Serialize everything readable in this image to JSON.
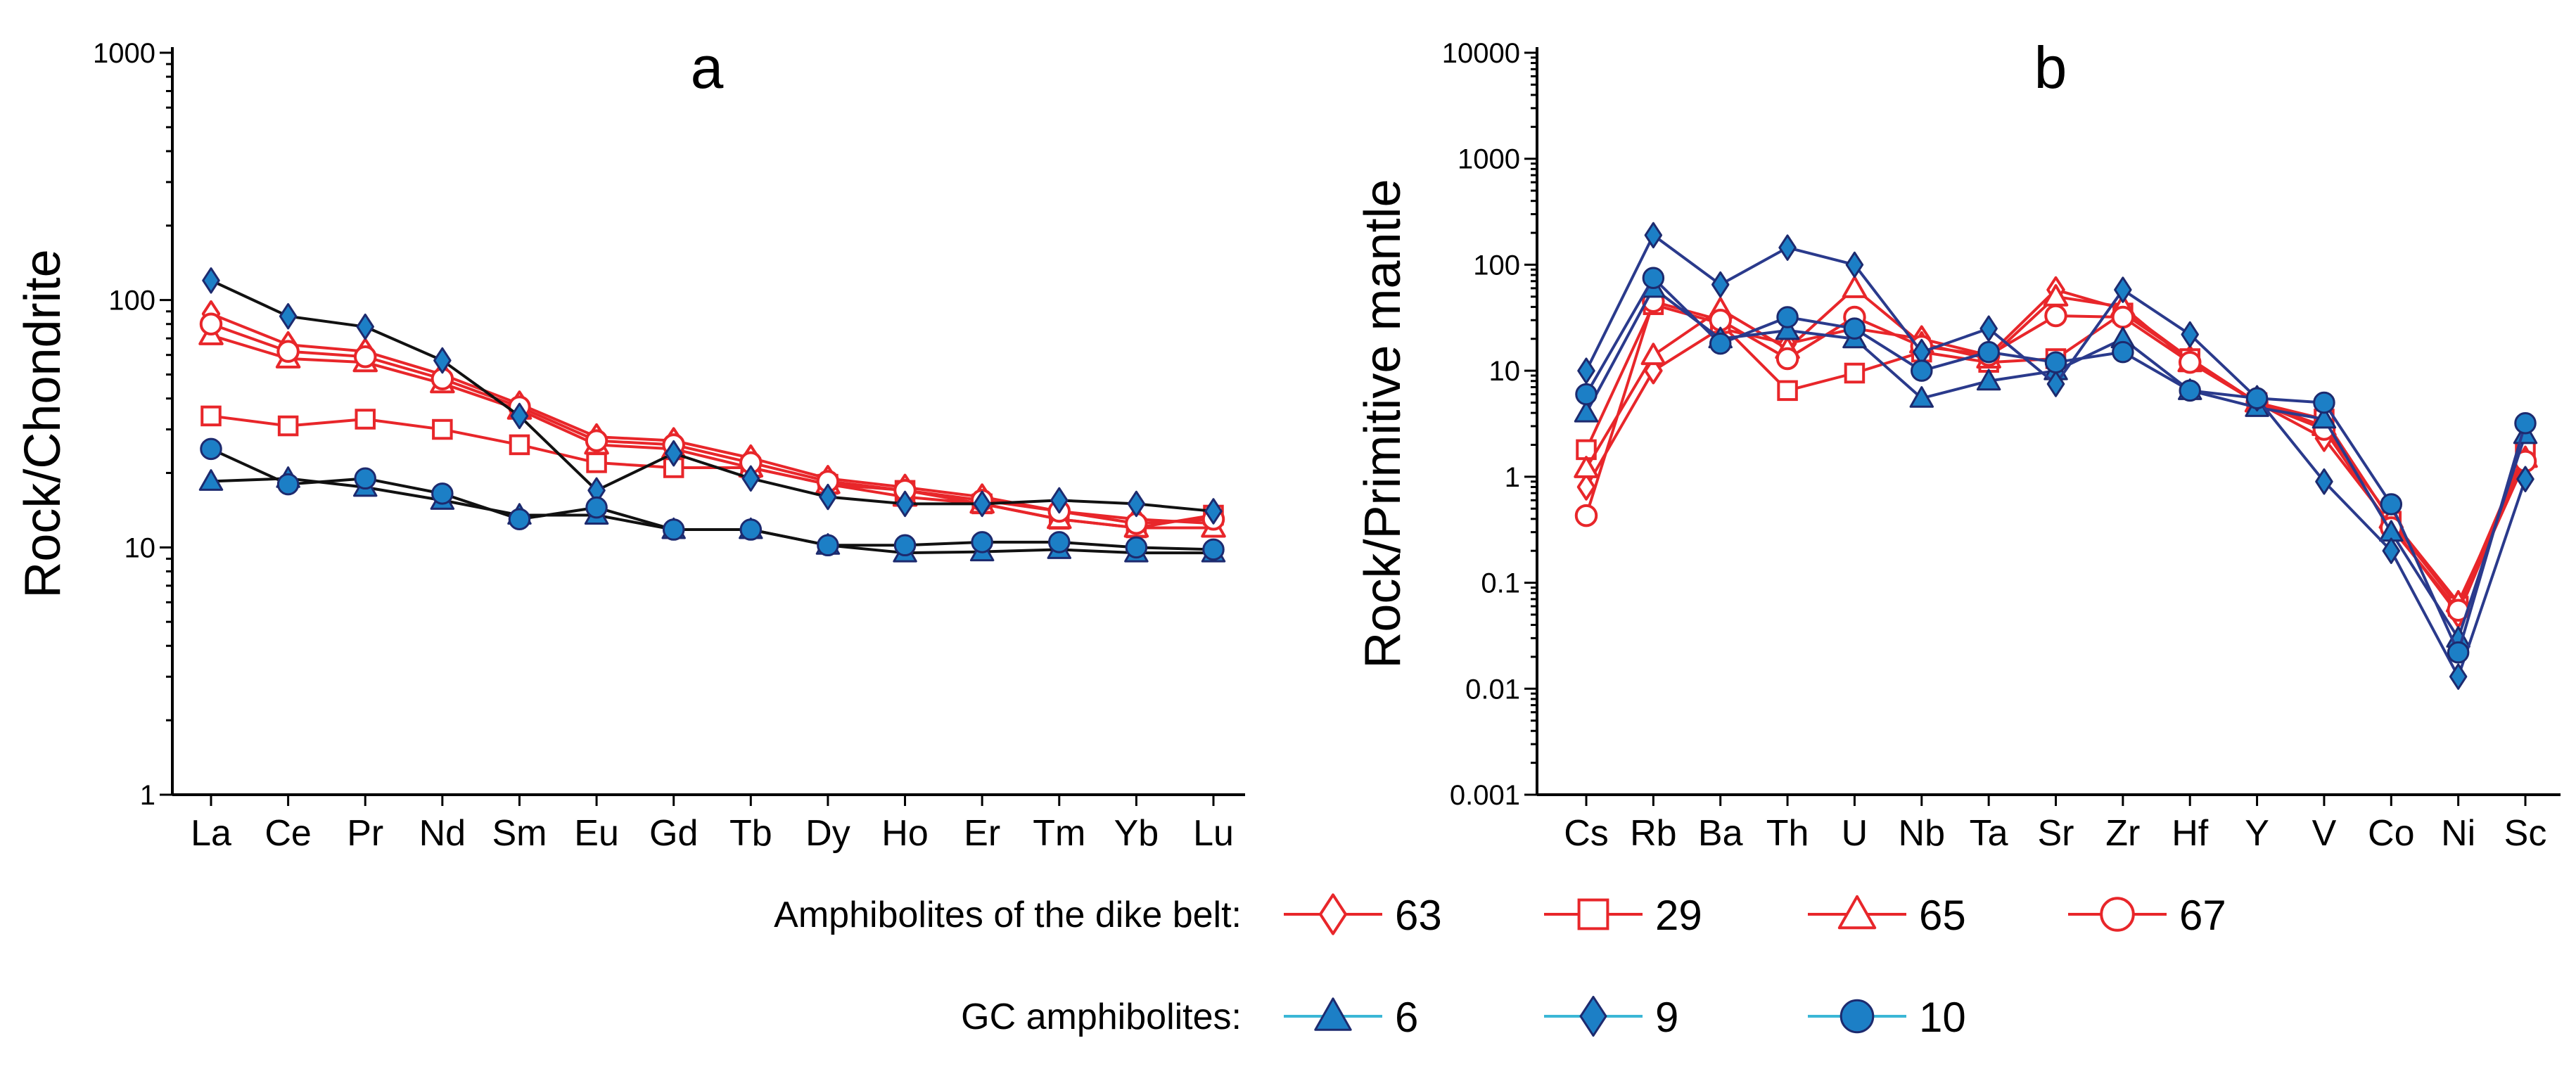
{
  "chart_data": [
    {
      "type": "line",
      "panel": "a",
      "ylabel": "Rock/Chondrite",
      "yscale": "log",
      "ylim": [
        1,
        1000
      ],
      "yticks": [
        "1",
        "10",
        "100",
        "1000"
      ],
      "categories": [
        "La",
        "Ce",
        "Pr",
        "Nd",
        "Sm",
        "Eu",
        "Gd",
        "Tb",
        "Dy",
        "Ho",
        "Er",
        "Tm",
        "Yb",
        "Lu"
      ],
      "series": [
        {
          "name": "63",
          "group": "dike",
          "marker": "diamond-open",
          "values": [
            88,
            66,
            62,
            50,
            38,
            28,
            27,
            23,
            19,
            17.5,
            16,
            14,
            13,
            12.5
          ]
        },
        {
          "name": "29",
          "group": "dike",
          "marker": "square-open",
          "values": [
            34,
            31,
            33,
            30,
            26,
            22,
            21,
            21,
            18,
            17,
            15,
            13,
            12,
            13.5
          ]
        },
        {
          "name": "65",
          "group": "dike",
          "marker": "triangle-open",
          "values": [
            72,
            58,
            56,
            46,
            36,
            26,
            25,
            21,
            18,
            16,
            15,
            13,
            12,
            12
          ]
        },
        {
          "name": "67",
          "group": "dike",
          "marker": "circle-open",
          "values": [
            80,
            62,
            59,
            48,
            37,
            27,
            26,
            22,
            18.5,
            17,
            15.5,
            14,
            12.5,
            13
          ]
        },
        {
          "name": "6",
          "group": "GC",
          "marker": "triangle-filled",
          "values": [
            18.5,
            19,
            17.5,
            15.5,
            13.5,
            13.5,
            11.8,
            11.8,
            10.2,
            9.5,
            9.6,
            9.8,
            9.5,
            9.5
          ]
        },
        {
          "name": "9",
          "group": "GC",
          "marker": "diamond-filled",
          "values": [
            120,
            86,
            78,
            57,
            34,
            17,
            24,
            19,
            16,
            15,
            15,
            15.5,
            15,
            14
          ]
        },
        {
          "name": "10",
          "group": "GC",
          "marker": "circle-filled",
          "values": [
            25,
            18,
            19,
            16.5,
            13,
            14.5,
            11.8,
            11.8,
            10.2,
            10.2,
            10.5,
            10.5,
            10,
            9.8
          ]
        }
      ]
    },
    {
      "type": "line",
      "panel": "b",
      "ylabel": "Rock/Primitive mantle",
      "yscale": "log",
      "ylim": [
        0.001,
        10000
      ],
      "yticks": [
        "0.001",
        "0.01",
        "0.1",
        "1",
        "10",
        "100",
        "1000",
        "10000"
      ],
      "categories": [
        "Cs",
        "Rb",
        "Ba",
        "Th",
        "U",
        "Nb",
        "Ta",
        "Sr",
        "Zr",
        "Hf",
        "Y",
        "V",
        "Co",
        "Ni",
        "Sc"
      ],
      "series": [
        {
          "name": "63",
          "group": "dike",
          "marker": "diamond-open",
          "values": [
            0.8,
            10,
            25,
            18,
            25,
            20,
            14,
            58,
            38,
            13,
            5,
            2.3,
            0.35,
            0.05,
            1.6
          ]
        },
        {
          "name": "29",
          "group": "dike",
          "marker": "square-open",
          "values": [
            1.8,
            42,
            28,
            6.5,
            9.5,
            15,
            12,
            13,
            35,
            13,
            5,
            3.5,
            0.38,
            0.06,
            1.8
          ]
        },
        {
          "name": "65",
          "group": "dike",
          "marker": "triangle-open",
          "values": [
            1.2,
            14,
            38,
            16,
            60,
            18,
            13,
            50,
            40,
            12,
            5,
            3,
            0.4,
            0.065,
            1.5
          ]
        },
        {
          "name": "67",
          "group": "dike",
          "marker": "circle-open",
          "values": [
            0.43,
            45,
            30,
            13,
            32,
            17,
            14,
            33,
            32,
            12,
            5,
            2.8,
            0.33,
            0.055,
            1.4
          ]
        },
        {
          "name": "6",
          "group": "GC",
          "marker": "triangle-filled",
          "values": [
            4,
            60,
            20,
            24,
            20,
            5.5,
            8,
            10,
            20,
            6.5,
            4.5,
            3.5,
            0.3,
            0.03,
            2.5
          ]
        },
        {
          "name": "9",
          "group": "GC",
          "marker": "diamond-filled",
          "values": [
            10,
            190,
            65,
            145,
            100,
            15,
            25,
            7.5,
            58,
            22,
            5.5,
            0.9,
            0.2,
            0.013,
            0.95
          ]
        },
        {
          "name": "10",
          "group": "GC",
          "marker": "circle-filled",
          "values": [
            6,
            75,
            18,
            32,
            25,
            10,
            15,
            12,
            15,
            6.5,
            5.5,
            5,
            0.55,
            0.022,
            3.2
          ]
        }
      ]
    }
  ],
  "legend": {
    "dike_label": "Amphibolites of the dike belt:",
    "gc_label": "GC amphibolites:",
    "dike_items": [
      {
        "marker": "diamond-open",
        "label": "63"
      },
      {
        "marker": "square-open",
        "label": "29"
      },
      {
        "marker": "triangle-open",
        "label": "65"
      },
      {
        "marker": "circle-open",
        "label": "67"
      }
    ],
    "gc_items": [
      {
        "marker": "triangle-filled",
        "label": "6"
      },
      {
        "marker": "diamond-filled",
        "label": "9"
      },
      {
        "marker": "circle-filled",
        "label": "10"
      }
    ]
  },
  "colors": {
    "dike": "#e8262a",
    "gc_fill": "#1c7fc6",
    "gc_stroke": "#1d2a6e",
    "panel_a_gc_line": "#111111",
    "panel_b_gc_line": "#2a3a8c",
    "legend_gc_line": "#3bb7d6",
    "legend_dike_line": "#e8262a"
  }
}
